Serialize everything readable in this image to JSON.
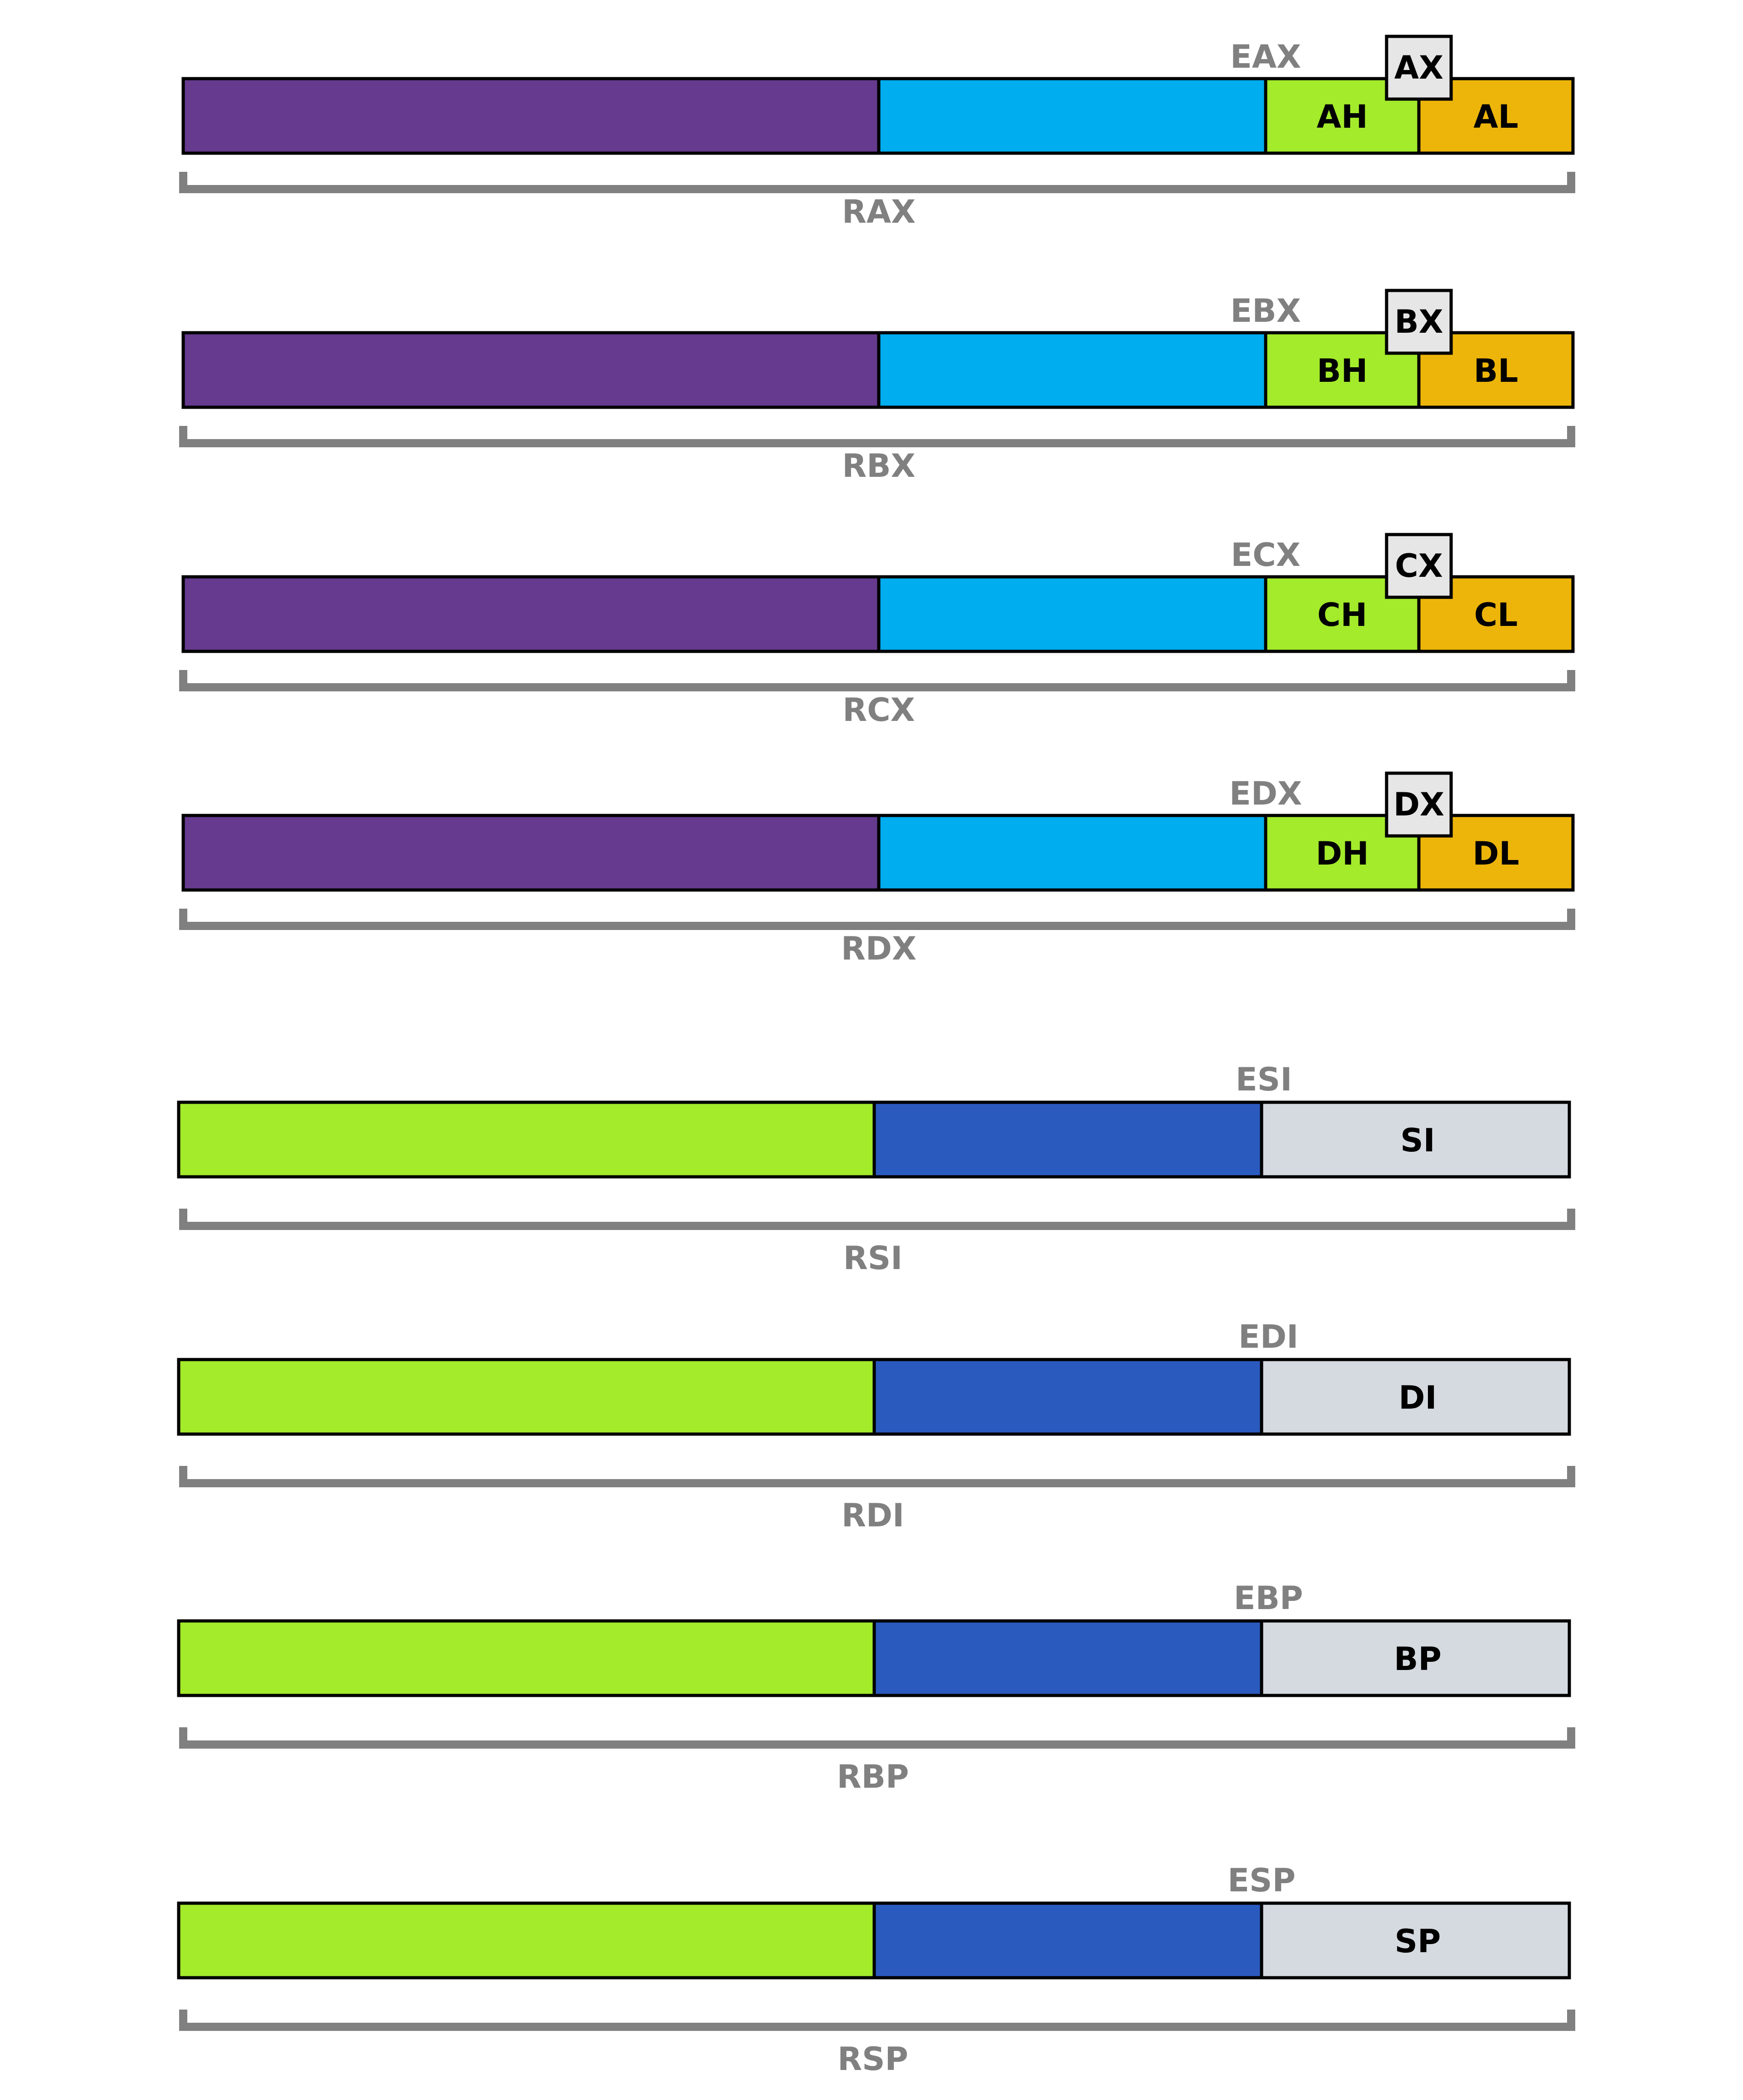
{
  "colors": {
    "purple": "#663a8f",
    "cyan": "#00adee",
    "lime": "#a3eb2b",
    "amber": "#edb50a",
    "blue": "#2b5abf",
    "light_gray": "#d5dae0",
    "label_gray": "#808080",
    "box_gray": "#e6e6e6"
  },
  "general_registers": [
    {
      "r": "RAX",
      "e": "EAX",
      "x": "AX",
      "h": "AH",
      "l": "AL"
    },
    {
      "r": "RBX",
      "e": "EBX",
      "x": "BX",
      "h": "BH",
      "l": "BL"
    },
    {
      "r": "RCX",
      "e": "ECX",
      "x": "CX",
      "h": "CH",
      "l": "CL"
    },
    {
      "r": "RDX",
      "e": "EDX",
      "x": "DX",
      "h": "DH",
      "l": "DL"
    }
  ],
  "index_registers": [
    {
      "r": "RSI",
      "e": "ESI",
      "x": "SI"
    },
    {
      "r": "RDI",
      "e": "EDI",
      "x": "DI"
    },
    {
      "r": "RBP",
      "e": "EBP",
      "x": "BP"
    },
    {
      "r": "RSP",
      "e": "ESP",
      "x": "SP"
    }
  ]
}
